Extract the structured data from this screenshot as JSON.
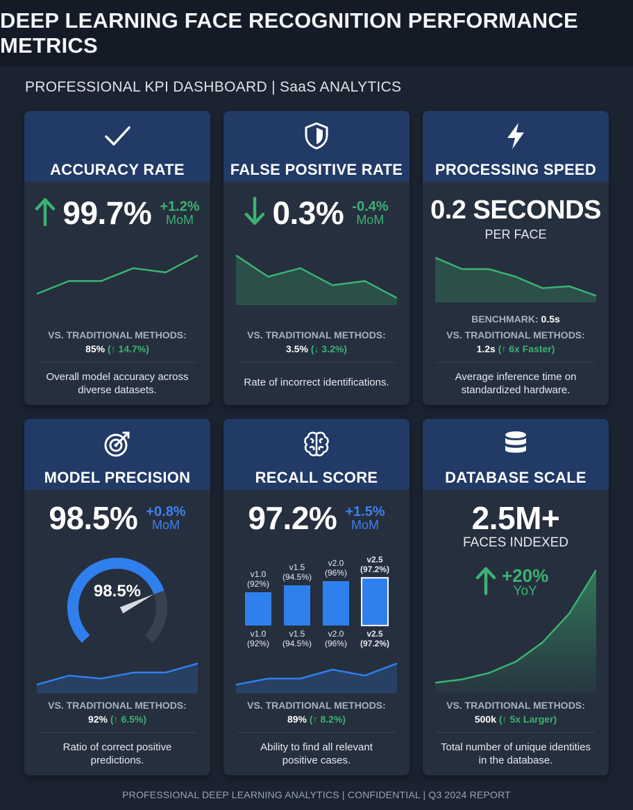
{
  "header": {
    "title": "DEEP LEARNING FACE RECOGNITION PERFORMANCE METRICS",
    "subtitle": "PROFESSIONAL KPI DASHBOARD  |  SaaS ANALYTICS"
  },
  "colors": {
    "accent_green": "#3bb273",
    "accent_blue": "#3b82f0",
    "header_blue": "#213a66",
    "card_bg": "#262f3d",
    "page_bg": "#1b2330"
  },
  "cards": {
    "accuracy": {
      "icon": "checkmark-icon",
      "title": "ACCURACY RATE",
      "value": "99.7%",
      "trend_icon": "arrow-up-icon",
      "delta": "+1.2%",
      "delta_period": "MoM",
      "vs_label": "VS. TRADITIONAL METHODS:",
      "vs_value": "85%",
      "vs_change": "(↑ 14.7%)",
      "description_line1": "Overall model accuracy across",
      "description_line2": "diverse datasets."
    },
    "false_positive": {
      "icon": "shield-icon",
      "title": "FALSE POSITIVE RATE",
      "value": "0.3%",
      "trend_icon": "arrow-down-icon",
      "delta": "-0.4%",
      "delta_period": "MoM",
      "vs_label": "VS. TRADITIONAL METHODS:",
      "vs_value": "3.5%",
      "vs_change": "(↓ 3.2%)",
      "description_line1": "Rate of incorrect identifications."
    },
    "processing": {
      "icon": "lightning-icon",
      "title": "PROCESSING SPEED",
      "value": "0.2 SECONDS",
      "unit": "PER FACE",
      "benchmark_label": "BENCHMARK:",
      "benchmark_value": "0.5s",
      "vs_label": "VS. TRADITIONAL METHODS:",
      "vs_value": "1.2s",
      "vs_change": "(↑ 6x Faster)",
      "description_line1": "Average inference time on",
      "description_line2": "standardized hardware."
    },
    "precision": {
      "icon": "target-icon",
      "title": "MODEL PRECISION",
      "value": "98.5%",
      "delta": "+0.8%",
      "delta_period": "MoM",
      "gauge_label": "98.5%",
      "gauge_value": 0.985,
      "vs_label": "VS. TRADITIONAL METHODS:",
      "vs_value": "92%",
      "vs_change": "(↑ 6.5%)",
      "description_line1": "Ratio of correct positive",
      "description_line2": "predictions."
    },
    "recall": {
      "icon": "brain-icon",
      "title": "RECALL SCORE",
      "value": "97.2%",
      "delta": "+1.5%",
      "delta_period": "MoM",
      "vs_label": "VS. TRADITIONAL METHODS:",
      "vs_value": "89%",
      "vs_change": "(↑ 8.2%)",
      "description_line1": "Ability to find all relevant",
      "description_line2": "positive cases."
    },
    "database": {
      "icon": "database-icon",
      "title": "DATABASE SCALE",
      "value": "2.5M+",
      "unit": "FACES INDEXED",
      "trend_icon": "arrow-up-icon",
      "delta": "+20%",
      "delta_period": "YoY",
      "vs_label": "VS. TRADITIONAL METHODS:",
      "vs_value": "500k",
      "vs_change": "(↑ 5x Larger)",
      "description_line1": "Total number of unique identities",
      "description_line2": "in the database."
    }
  },
  "chart_data": [
    {
      "type": "line",
      "chart": "accuracy-sparkline",
      "values": [
        2,
        5,
        5,
        8,
        7,
        11
      ]
    },
    {
      "type": "line",
      "chart": "false-positive-sparkline",
      "values": [
        11,
        6,
        8,
        4,
        5,
        1
      ]
    },
    {
      "type": "line",
      "chart": "processing-sparkline",
      "values": [
        11,
        8,
        8,
        6,
        3,
        3.5,
        1
      ]
    },
    {
      "type": "line",
      "chart": "precision-sparkline",
      "values": [
        2,
        5,
        4,
        6,
        6,
        9
      ]
    },
    {
      "type": "line",
      "chart": "recall-sparkline",
      "values": [
        2,
        4,
        4,
        7,
        5,
        9
      ]
    },
    {
      "type": "bar",
      "chart": "recall-versions",
      "categories": [
        "v1.0",
        "v1.5",
        "v2.0",
        "v2.5"
      ],
      "labels": [
        "v1.0\n(92%)",
        "v1.5\n(94.5%)",
        "v2.0\n(96%)",
        "v2.5\n(97.2%)"
      ],
      "values": [
        92,
        94.5,
        96,
        97.2
      ]
    },
    {
      "type": "area",
      "chart": "database-growth",
      "values": [
        1,
        1.4,
        2.2,
        3.6,
        6,
        9.6,
        15
      ]
    }
  ],
  "footer": "PROFESSIONAL DEEP LEARNING ANALYTICS  |  CONFIDENTIAL  |  Q3 2024 REPORT"
}
